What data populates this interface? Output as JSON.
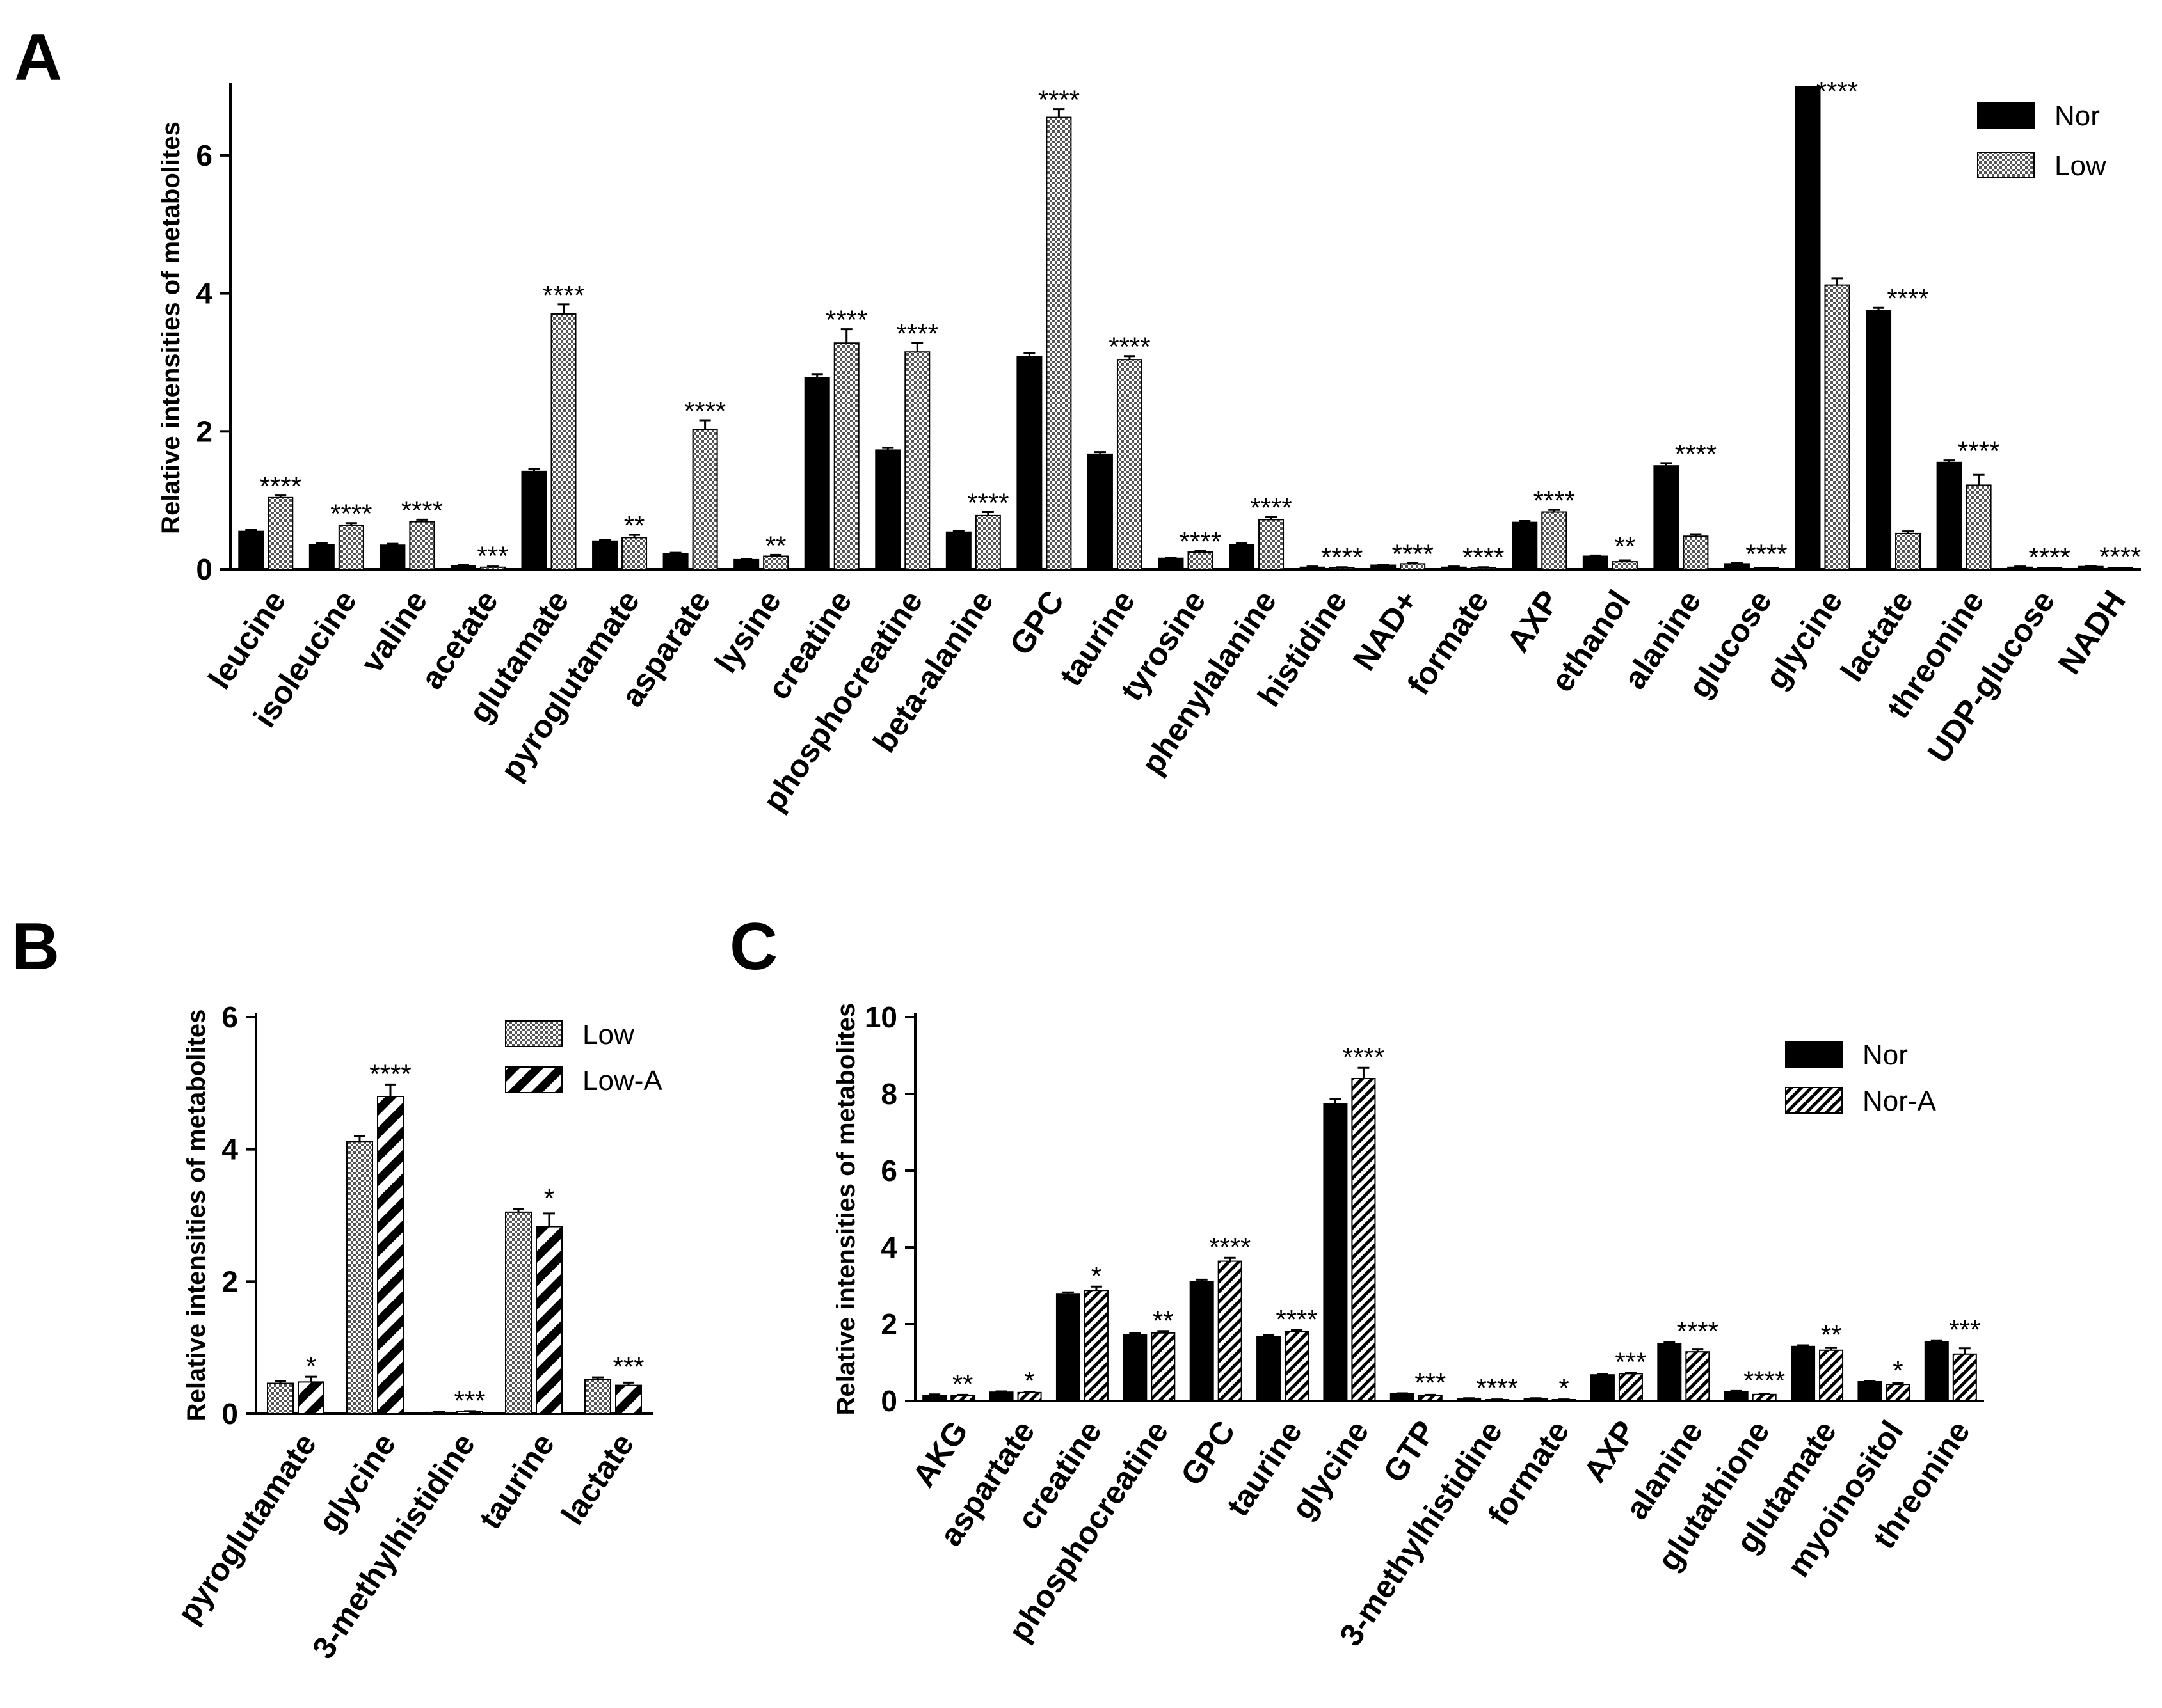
{
  "chart_data": [
    {
      "panel": "A",
      "type": "bar",
      "ylabel": "Relative intensities of metabolites",
      "ylim": [
        0,
        7
      ],
      "yticks": [
        0,
        2,
        4,
        6
      ],
      "series": [
        {
          "name": "Nor",
          "pattern": "solid",
          "values": [
            0.55,
            0.36,
            0.35,
            0.05,
            1.42,
            0.41,
            0.23,
            0.14,
            2.78,
            1.73,
            0.54,
            3.08,
            1.67,
            0.16,
            0.36,
            0.03,
            0.06,
            0.03,
            0.68,
            0.19,
            1.5,
            0.08,
            7.0,
            3.75,
            1.55,
            0.03,
            0.04
          ],
          "errors": [
            0.02,
            0.02,
            0.02,
            0.01,
            0.04,
            0.02,
            0.01,
            0.01,
            0.05,
            0.03,
            0.02,
            0.05,
            0.03,
            0.01,
            0.02,
            0.01,
            0.01,
            0.01,
            0.02,
            0.01,
            0.04,
            0.01,
            0.0,
            0.04,
            0.03,
            0.01,
            0.01
          ]
        },
        {
          "name": "Low",
          "pattern": "checker",
          "values": [
            1.04,
            0.64,
            0.69,
            0.03,
            3.7,
            0.46,
            2.03,
            0.19,
            3.28,
            3.15,
            0.78,
            6.55,
            3.04,
            0.25,
            0.72,
            0.02,
            0.08,
            0.02,
            0.83,
            0.11,
            0.48,
            0.01,
            4.12,
            0.52,
            1.22,
            0.01,
            0.0
          ],
          "errors": [
            0.03,
            0.03,
            0.03,
            0.01,
            0.14,
            0.04,
            0.13,
            0.02,
            0.2,
            0.13,
            0.05,
            0.12,
            0.05,
            0.02,
            0.04,
            0.01,
            0.01,
            0.01,
            0.03,
            0.02,
            0.03,
            0.01,
            0.1,
            0.03,
            0.15,
            0.01,
            0.0
          ]
        }
      ],
      "categories": [
        "leucine",
        "isoleucine",
        "valine",
        "acetate",
        "glutamate",
        "pyroglutamate",
        "asparate",
        "lysine",
        "creatine",
        "phosphocreatine",
        "beta-alanine",
        "GPC",
        "taurine",
        "tyrosine",
        "phenylalanine",
        "histidine",
        "NAD+",
        "formate",
        "AXP",
        "ethanol",
        "alanine",
        "glucose",
        "glycine",
        "lactate",
        "threonine",
        "UDP-glucose",
        "NADH"
      ],
      "significance": [
        "****",
        "****",
        "****",
        "***",
        "****",
        "**",
        "****",
        "**",
        "****",
        "****",
        "****",
        "****",
        "****",
        "****",
        "****",
        "****",
        "****",
        "****",
        "****",
        "**",
        "****",
        "****",
        "****",
        "****",
        "****",
        "****",
        "****"
      ],
      "legend": [
        "Nor",
        "Low"
      ],
      "legend_position": "top-right"
    },
    {
      "panel": "B",
      "type": "bar",
      "ylabel": "Relative intensities of metabolites",
      "ylim": [
        0,
        6
      ],
      "yticks": [
        0,
        2,
        4,
        6
      ],
      "series": [
        {
          "name": "Low",
          "pattern": "checker",
          "values": [
            0.46,
            4.12,
            0.02,
            3.05,
            0.52
          ],
          "errors": [
            0.03,
            0.08,
            0.01,
            0.05,
            0.03
          ]
        },
        {
          "name": "Low-A",
          "pattern": "wide-diagonal",
          "values": [
            0.48,
            4.8,
            0.03,
            2.83,
            0.43
          ],
          "errors": [
            0.08,
            0.18,
            0.01,
            0.2,
            0.04
          ]
        }
      ],
      "categories": [
        "pyroglutamate",
        "glycine",
        "3-methylhistidine",
        "taurine",
        "lactate"
      ],
      "significance": [
        "*",
        "****",
        "***",
        "*",
        "***"
      ],
      "legend": [
        "Low",
        "Low-A"
      ],
      "legend_position": "top-right"
    },
    {
      "panel": "C",
      "type": "bar",
      "ylabel": "Relative intensities of metabolites",
      "ylim": [
        0,
        10
      ],
      "yticks": [
        0,
        2,
        4,
        6,
        8,
        10
      ],
      "series": [
        {
          "name": "Nor",
          "pattern": "solid",
          "values": [
            0.15,
            0.23,
            2.78,
            1.73,
            3.1,
            1.68,
            7.75,
            0.19,
            0.06,
            0.06,
            0.68,
            1.5,
            0.24,
            1.42,
            0.5,
            1.55
          ],
          "errors": [
            0.02,
            0.02,
            0.05,
            0.04,
            0.06,
            0.03,
            0.12,
            0.01,
            0.01,
            0.01,
            0.02,
            0.04,
            0.02,
            0.03,
            0.02,
            0.03
          ]
        },
        {
          "name": "Nor-A",
          "pattern": "narrow-diagonal",
          "values": [
            0.14,
            0.22,
            2.88,
            1.77,
            3.64,
            1.8,
            8.4,
            0.15,
            0.03,
            0.03,
            0.71,
            1.28,
            0.17,
            1.32,
            0.43,
            1.22
          ],
          "errors": [
            0.02,
            0.02,
            0.1,
            0.05,
            0.09,
            0.05,
            0.28,
            0.01,
            0.01,
            0.01,
            0.03,
            0.06,
            0.02,
            0.06,
            0.04,
            0.15
          ]
        }
      ],
      "categories": [
        "AKG",
        "aspartate",
        "creatine",
        "phosphocreatine",
        "GPC",
        "taurine",
        "glycine",
        "GTP",
        "3-methylhistidine",
        "formate",
        "AXP",
        "alanine",
        "glutathione",
        "glutamate",
        "myoinositol",
        "threonine"
      ],
      "significance": [
        "**",
        "*",
        "*",
        "**",
        "****",
        "****",
        "****",
        "***",
        "****",
        "*",
        "***",
        "****",
        "****",
        "**",
        "*",
        "***"
      ],
      "legend": [
        "Nor",
        "Nor-A"
      ],
      "legend_position": "top-right"
    }
  ]
}
